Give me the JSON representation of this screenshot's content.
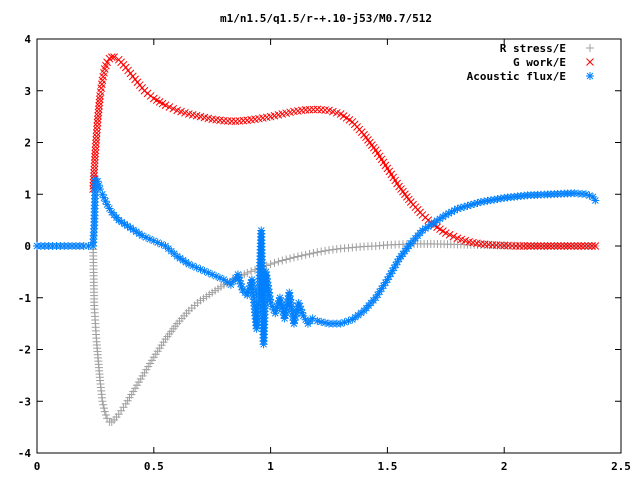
{
  "chart_data": {
    "type": "scatter",
    "title": "m1/n1.5/q1.5/r-+.10-j53/M0.7/512",
    "xlabel": "",
    "ylabel": "",
    "xlim": [
      0,
      2.5
    ],
    "ylim": [
      -4,
      4
    ],
    "grid": false,
    "legend_position": "top-right",
    "xticks": [
      "0",
      "0.5",
      "1",
      "1.5",
      "2",
      "2.5"
    ],
    "yticks": [
      "-4",
      "-3",
      "-2",
      "-1",
      "0",
      "1",
      "2",
      "3",
      "4"
    ],
    "series": [
      {
        "name": "R stress/E",
        "color": "#a0a0a0",
        "marker": "plus",
        "x": [
          0.0,
          0.05,
          0.1,
          0.15,
          0.2,
          0.24,
          0.245,
          0.25,
          0.255,
          0.26,
          0.265,
          0.27,
          0.275,
          0.28,
          0.29,
          0.3,
          0.31,
          0.32,
          0.33,
          0.35,
          0.38,
          0.42,
          0.46,
          0.5,
          0.55,
          0.6,
          0.65,
          0.7,
          0.75,
          0.8,
          0.85,
          0.9,
          0.95,
          1.0,
          1.05,
          1.1,
          1.15,
          1.2,
          1.25,
          1.3,
          1.35,
          1.4,
          1.45,
          1.5,
          1.55,
          1.6,
          1.7,
          1.8,
          1.9,
          2.0,
          2.1,
          2.2,
          2.3,
          2.39
        ],
        "y": [
          0.0,
          0.0,
          0.0,
          0.0,
          0.0,
          0.0,
          -1.15,
          -1.5,
          -1.85,
          -2.1,
          -2.35,
          -2.6,
          -2.8,
          -3.0,
          -3.2,
          -3.33,
          -3.4,
          -3.4,
          -3.36,
          -3.25,
          -3.05,
          -2.75,
          -2.45,
          -2.15,
          -1.8,
          -1.5,
          -1.25,
          -1.05,
          -0.9,
          -0.75,
          -0.63,
          -0.52,
          -0.43,
          -0.35,
          -0.28,
          -0.22,
          -0.17,
          -0.12,
          -0.08,
          -0.05,
          -0.03,
          -0.01,
          0.0,
          0.02,
          0.03,
          0.04,
          0.04,
          0.03,
          0.02,
          0.01,
          0.0,
          0.0,
          0.0,
          0.0
        ]
      },
      {
        "name": "G work/E",
        "color": "#ff0000",
        "marker": "cross",
        "x": [
          0.24,
          0.25,
          0.26,
          0.27,
          0.28,
          0.29,
          0.3,
          0.31,
          0.32,
          0.33,
          0.35,
          0.38,
          0.42,
          0.46,
          0.5,
          0.55,
          0.6,
          0.65,
          0.7,
          0.75,
          0.8,
          0.85,
          0.9,
          0.95,
          1.0,
          1.05,
          1.1,
          1.15,
          1.2,
          1.25,
          1.3,
          1.35,
          1.4,
          1.45,
          1.5,
          1.55,
          1.6,
          1.65,
          1.7,
          1.75,
          1.8,
          1.85,
          1.9,
          1.95,
          2.0,
          2.05,
          2.1,
          2.2,
          2.3,
          2.39
        ],
        "y": [
          1.1,
          1.85,
          2.45,
          2.9,
          3.2,
          3.42,
          3.55,
          3.62,
          3.65,
          3.65,
          3.6,
          3.45,
          3.22,
          3.0,
          2.85,
          2.72,
          2.62,
          2.55,
          2.5,
          2.45,
          2.42,
          2.41,
          2.43,
          2.46,
          2.5,
          2.55,
          2.6,
          2.63,
          2.64,
          2.62,
          2.55,
          2.4,
          2.15,
          1.85,
          1.5,
          1.15,
          0.85,
          0.6,
          0.4,
          0.25,
          0.15,
          0.08,
          0.04,
          0.02,
          0.01,
          0.0,
          0.0,
          0.0,
          0.0,
          0.0
        ]
      },
      {
        "name": "Acoustic flux/E",
        "color": "#0080ff",
        "marker": "star",
        "x": [
          0.0,
          0.05,
          0.1,
          0.15,
          0.2,
          0.24,
          0.245,
          0.25,
          0.26,
          0.27,
          0.28,
          0.3,
          0.32,
          0.35,
          0.4,
          0.45,
          0.5,
          0.55,
          0.6,
          0.65,
          0.7,
          0.75,
          0.8,
          0.83,
          0.86,
          0.88,
          0.9,
          0.92,
          0.94,
          0.95,
          0.96,
          0.97,
          0.98,
          1.0,
          1.02,
          1.04,
          1.06,
          1.08,
          1.1,
          1.12,
          1.14,
          1.16,
          1.18,
          1.2,
          1.25,
          1.3,
          1.35,
          1.4,
          1.45,
          1.5,
          1.55,
          1.6,
          1.65,
          1.7,
          1.75,
          1.8,
          1.9,
          2.0,
          2.1,
          2.2,
          2.3,
          2.35,
          2.38,
          2.39
        ],
        "y": [
          0.0,
          0.0,
          0.0,
          0.0,
          0.0,
          0.0,
          0.4,
          1.3,
          1.25,
          1.1,
          1.0,
          0.8,
          0.65,
          0.5,
          0.35,
          0.2,
          0.1,
          0.0,
          -0.2,
          -0.35,
          -0.45,
          -0.55,
          -0.65,
          -0.75,
          -0.55,
          -0.85,
          -0.95,
          -0.65,
          -1.6,
          -1.0,
          0.3,
          -1.9,
          -0.5,
          -1.1,
          -1.3,
          -1.0,
          -1.4,
          -0.9,
          -1.5,
          -1.1,
          -1.35,
          -1.5,
          -1.4,
          -1.45,
          -1.5,
          -1.5,
          -1.42,
          -1.25,
          -1.0,
          -0.65,
          -0.25,
          0.05,
          0.3,
          0.45,
          0.6,
          0.72,
          0.85,
          0.93,
          0.98,
          1.0,
          1.02,
          1.0,
          0.95,
          0.88
        ]
      }
    ]
  }
}
